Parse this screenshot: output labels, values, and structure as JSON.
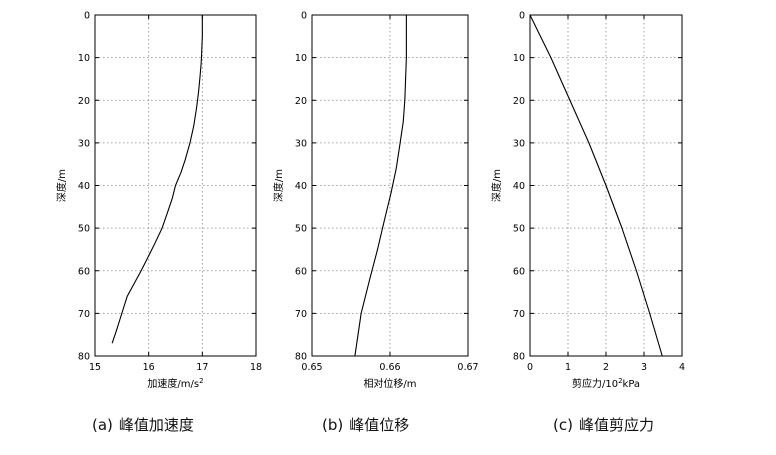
{
  "chart_data": [
    {
      "type": "line",
      "title": "",
      "xlabel": "加速度/m/s",
      "xlabel_sup": "2",
      "ylabel": "深度/m",
      "xlim": [
        15,
        18
      ],
      "ylim": [
        0,
        80
      ],
      "y_inverted": true,
      "x_axis_position": "bottom",
      "xticks": [
        15,
        16,
        17,
        18
      ],
      "xtick_labels": [
        "15",
        "16",
        "17",
        "18"
      ],
      "yticks": [
        0,
        10,
        20,
        30,
        40,
        50,
        60,
        70,
        80
      ],
      "ytick_labels": [
        "0",
        "10",
        "20",
        "30",
        "40",
        "50",
        "60",
        "70",
        "80"
      ],
      "grid": "dotted",
      "series": [
        {
          "x": [
            17.0,
            17.0,
            17.0,
            16.99,
            16.98,
            16.96,
            16.93,
            16.89,
            16.84,
            16.77,
            16.68,
            16.6,
            16.5,
            16.44,
            16.36,
            16.25,
            16.1,
            15.98,
            15.86,
            15.73,
            15.6,
            15.5,
            15.4,
            15.32
          ],
          "y": [
            0,
            2,
            5,
            8,
            11,
            14,
            18,
            22,
            26,
            30,
            34,
            37,
            40,
            43,
            46,
            50,
            54,
            57,
            60,
            63,
            66,
            70,
            74,
            77
          ]
        }
      ]
    },
    {
      "type": "line",
      "title": "",
      "xlabel": "相对位移/m",
      "ylabel": "深度/m",
      "xlim": [
        0.65,
        0.67
      ],
      "ylim": [
        0,
        80
      ],
      "y_inverted": true,
      "x_axis_position": "bottom",
      "xticks": [
        0.65,
        0.66,
        0.67
      ],
      "xtick_labels": [
        "0.65",
        "0.66",
        "0.67"
      ],
      "yticks": [
        0,
        10,
        20,
        30,
        40,
        50,
        60,
        70,
        80
      ],
      "ytick_labels": [
        "0",
        "10",
        "20",
        "30",
        "40",
        "50",
        "60",
        "70",
        "80"
      ],
      "grid": "dotted",
      "series": [
        {
          "x": [
            0.6621,
            0.6621,
            0.6621,
            0.662,
            0.6619,
            0.6617,
            0.6613,
            0.6608,
            0.6601,
            0.6593,
            0.6584,
            0.6574,
            0.6563,
            0.6555
          ],
          "y": [
            0,
            5,
            10,
            15,
            20,
            25,
            30,
            36,
            42,
            48,
            55,
            62,
            70,
            80
          ]
        }
      ]
    },
    {
      "type": "line",
      "title": "",
      "xlabel": "剪应力/10",
      "xlabel_sup": "2",
      "xlabel_tail": "kPa",
      "ylabel": "深度/m",
      "xlim": [
        0,
        4
      ],
      "ylim": [
        0,
        80
      ],
      "y_inverted": true,
      "x_axis_position": "bottom",
      "xticks": [
        0,
        1,
        2,
        3,
        4
      ],
      "xtick_labels": [
        "0",
        "1",
        "2",
        "3",
        "4"
      ],
      "yticks": [
        0,
        10,
        20,
        30,
        40,
        50,
        60,
        70,
        80
      ],
      "ytick_labels": [
        "0",
        "10",
        "20",
        "30",
        "40",
        "50",
        "60",
        "70",
        "80"
      ],
      "grid": "dotted",
      "series": [
        {
          "x": [
            0,
            0.55,
            1.05,
            1.55,
            2.0,
            2.42,
            2.8,
            3.15,
            3.48,
            3.78
          ],
          "y": [
            0,
            10,
            20,
            30,
            40,
            50,
            60,
            70,
            80,
            80
          ]
        }
      ]
    }
  ],
  "captions": [
    {
      "letter": "(a)",
      "text": "峰值加速度"
    },
    {
      "letter": "(b)",
      "text": "峰值位移"
    },
    {
      "letter": "(c)",
      "text": "峰值剪应力"
    }
  ]
}
